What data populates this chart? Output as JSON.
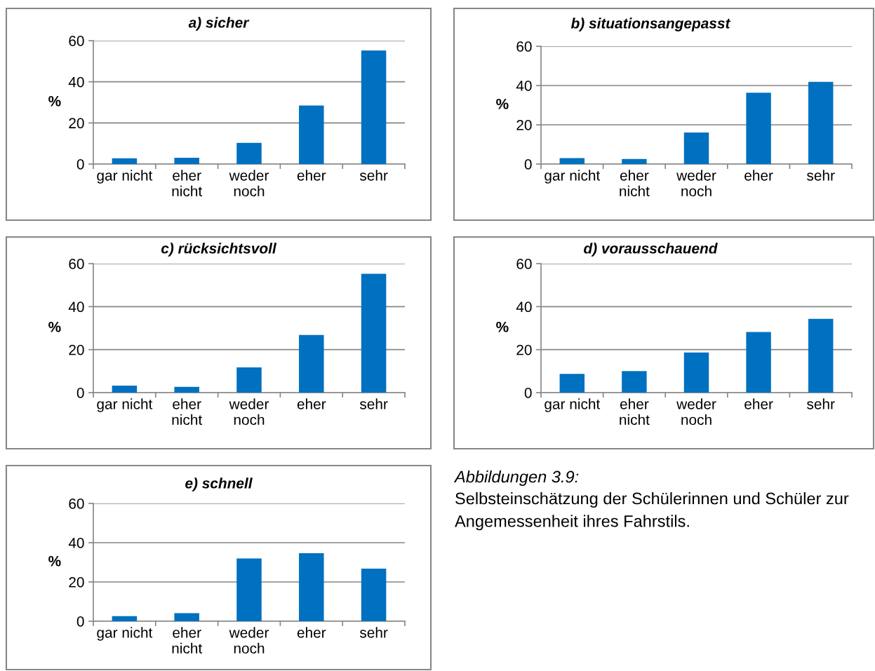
{
  "chart_data": [
    {
      "type": "bar",
      "title": "a) sicher",
      "ylabel": "%",
      "categories": [
        "gar nicht",
        "eher\nnicht",
        "weder\nnoch",
        "eher",
        "sehr"
      ],
      "values": [
        2.8,
        3.1,
        10.3,
        28.5,
        55.2
      ],
      "color": "#0070c0",
      "ylim": [
        0,
        60
      ],
      "yticks": [
        0,
        20,
        40,
        60
      ],
      "grid": "y"
    },
    {
      "type": "bar",
      "title": "b) situationsangepasst",
      "ylabel": "%",
      "categories": [
        "gar nicht",
        "eher\nnicht",
        "weder\nnoch",
        "eher",
        "sehr"
      ],
      "values": [
        3.0,
        2.6,
        16.1,
        36.3,
        41.9
      ],
      "color": "#0070c0",
      "ylim": [
        0,
        60
      ],
      "yticks": [
        0,
        20,
        40,
        60
      ],
      "grid": "y"
    },
    {
      "type": "bar",
      "title": "c) rücksichtsvoll",
      "ylabel": "%",
      "categories": [
        "gar nicht",
        "eher\nnicht",
        "weder\nnoch",
        "eher",
        "sehr"
      ],
      "values": [
        3.3,
        2.7,
        11.7,
        26.8,
        55.3
      ],
      "color": "#0070c0",
      "ylim": [
        0,
        60
      ],
      "yticks": [
        0,
        20,
        40,
        60
      ],
      "grid": "y"
    },
    {
      "type": "bar",
      "title": "d) vorausschauend",
      "ylabel": "%",
      "categories": [
        "gar nicht",
        "eher\nnicht",
        "weder\nnoch",
        "eher",
        "sehr"
      ],
      "values": [
        8.7,
        10.0,
        18.7,
        28.2,
        34.3
      ],
      "color": "#0070c0",
      "ylim": [
        0,
        60
      ],
      "yticks": [
        0,
        20,
        40,
        60
      ],
      "grid": "y"
    },
    {
      "type": "bar",
      "title": "e) schnell",
      "ylabel": "%",
      "categories": [
        "gar nicht",
        "eher\nnicht",
        "weder\nnoch",
        "eher",
        "sehr"
      ],
      "values": [
        2.6,
        4.1,
        32.0,
        34.6,
        26.8
      ],
      "color": "#0070c0",
      "ylim": [
        0,
        60
      ],
      "yticks": [
        0,
        20,
        40,
        60
      ],
      "grid": "y"
    },
    {
      "type": "other",
      "annotations": [
        "Abbildungen 3.9:",
        "Selbsteinschätzung der Schülerinnen und Schüler zur Angemessenheit ihres Fahrstils."
      ]
    }
  ]
}
